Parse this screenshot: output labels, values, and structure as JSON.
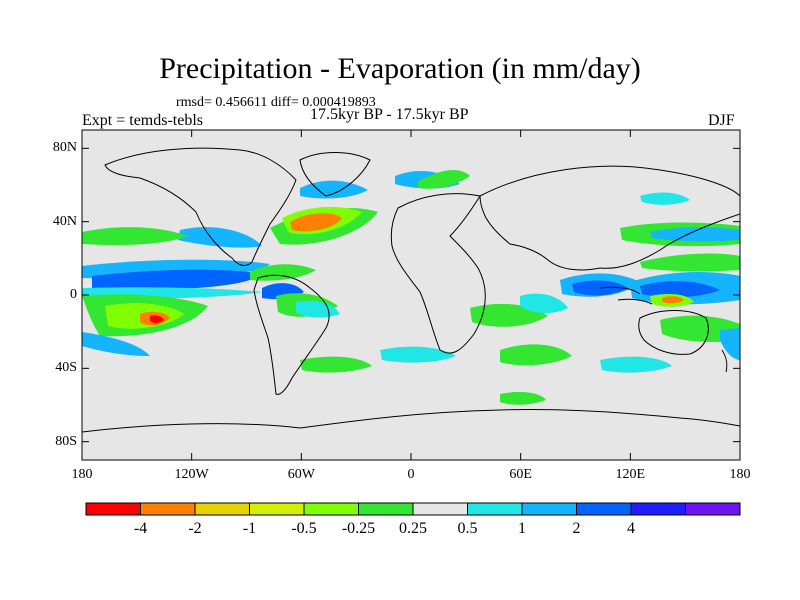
{
  "title": "Precipitation - Evaporation (in mm/day)",
  "stats": "rmsd= 0.456611 diff= 0.000419893",
  "left_label": "Expt = temds-tebls",
  "center_label": "17.5kyr BP - 17.5kyr BP",
  "right_label": "DJF",
  "map": {
    "lon_range": [
      -180,
      180
    ],
    "lat_range": [
      -90,
      90
    ],
    "background_color": "#e6e6e6",
    "y_ticks": [
      {
        "lat": 80,
        "label": "80N"
      },
      {
        "lat": 40,
        "label": "40N"
      },
      {
        "lat": 0,
        "label": "0"
      },
      {
        "lat": -40,
        "label": "40S"
      },
      {
        "lat": -80,
        "label": "80S"
      }
    ],
    "x_ticks": [
      {
        "lon": -180,
        "label": "180"
      },
      {
        "lon": -120,
        "label": "120W"
      },
      {
        "lon": -60,
        "label": "60W"
      },
      {
        "lon": 0,
        "label": "0"
      },
      {
        "lon": 60,
        "label": "60E"
      },
      {
        "lon": 120,
        "label": "120E"
      },
      {
        "lon": 180,
        "label": "180"
      }
    ]
  },
  "colorbar": {
    "colors": [
      "#ff0000",
      "#ff8000",
      "#e6d200",
      "#d2f000",
      "#80ff00",
      "#32e632",
      "#e6e6e6",
      "#20e6e6",
      "#14b4ff",
      "#0064ff",
      "#1e1eff",
      "#6e14f0"
    ],
    "labels": [
      "-4",
      "-2",
      "-1",
      "-0.5",
      "-0.25",
      "0.25",
      "0.5",
      "1",
      "2",
      "4"
    ]
  }
}
